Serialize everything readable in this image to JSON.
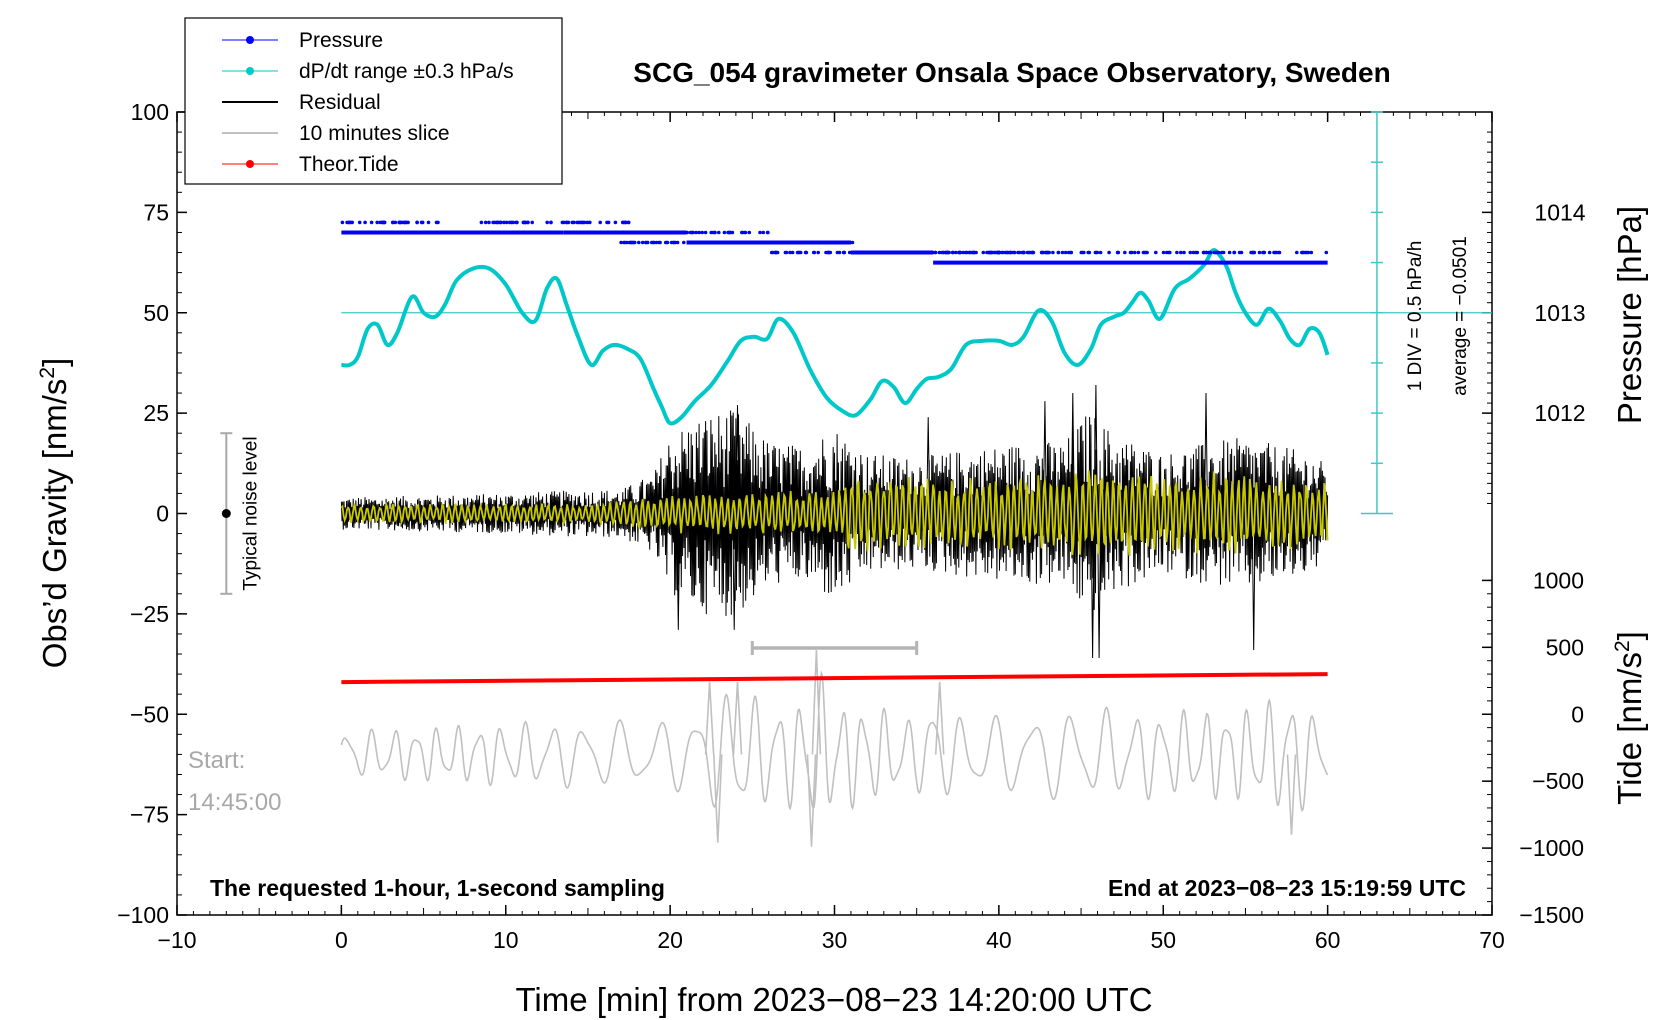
{
  "chart_data": {
    "type": "line",
    "title": "SCG_054 gravimeter Onsala Space Observatory, Sweden",
    "xlabel": "Time [min] from 2023−08−23 14:20:00 UTC",
    "ylabel_left": "Obs’d Gravity [nm/s²]",
    "ylabel_left_main": "Obs’d Gravity [nm/s",
    "ylabel_left_sup": "2",
    "ylabel_left_end": "]",
    "ylabel_right_pressure": "Pressure [hPa]",
    "ylabel_right_tide": "Tide [nm/s²]",
    "ylabel_right_tide_main": "Tide [nm/s",
    "ylabel_right_tide_sup": "2",
    "ylabel_right_tide_end": "]",
    "xlim": [
      -10,
      70
    ],
    "ylim": [
      -100,
      100
    ],
    "x_ticks": [
      -10,
      0,
      10,
      20,
      30,
      40,
      50,
      60,
      70
    ],
    "x_tick_labels": [
      "−10",
      "0",
      "10",
      "20",
      "30",
      "40",
      "50",
      "60",
      "70"
    ],
    "y_ticks": [
      -100,
      -75,
      -50,
      -25,
      0,
      25,
      50,
      75,
      100
    ],
    "y_tick_labels": [
      "−100",
      "−75",
      "−50",
      "−25",
      "0",
      "25",
      "50",
      "75",
      "100"
    ],
    "pressure_ticks": [
      1012,
      1013,
      1014
    ],
    "pressure_tick_labels": [
      "1012",
      "1013",
      "1014"
    ],
    "pressure_axis": {
      "value_at_gravity_0": 1011,
      "hpa_per_gravity_unit": 0.04
    },
    "tide_ticks": [
      -1500,
      -1000,
      -500,
      0,
      500,
      1000
    ],
    "tide_tick_labels": [
      "−1500",
      "−1000",
      "−500",
      "0",
      "500",
      "1000"
    ],
    "tide_axis": {
      "value_at_gravity_neg100": -1500,
      "nms2_per_gravity_unit": 30
    },
    "legend": [
      {
        "label": "Pressure",
        "color": "#0000ff",
        "style": "line-dot"
      },
      {
        "label": "dP/dt range ±0.3 hPa/s",
        "color": "#00c8c8",
        "style": "line-dot"
      },
      {
        "label": "Residual",
        "color": "#000000",
        "style": "line"
      },
      {
        "label": "10 minutes slice",
        "color": "#c0c0c0",
        "style": "line"
      },
      {
        "label": "Theor.Tide",
        "color": "#ff0000",
        "style": "line-dot"
      }
    ],
    "annotations": {
      "noise_label": "Typical noise level",
      "noise_range": [
        -20,
        20
      ],
      "noise_x": -7,
      "div_label": "1 DIV = 0.5 hPa/h",
      "average_label": "average = −0.0501",
      "scale_bar_x": 63,
      "scale_bar_range": [
        0,
        100
      ],
      "scale_bar_ref": 50,
      "bottom_left_note": "The requested 1-hour, 1-second sampling",
      "bottom_right_note": "End at 2023−08−23 15:19:59 UTC",
      "start_label": "Start:",
      "start_time": "14:45:00",
      "slice_bar_range": [
        25,
        35
      ],
      "slice_bar_y": -33.5
    },
    "series": [
      {
        "name": "Pressure",
        "color": "#0000ff",
        "main_line": [
          {
            "x": [
              0,
              13.5
            ],
            "y": 70
          },
          {
            "x": [
              13.5,
              21
            ],
            "y": 70
          },
          {
            "x": [
              21,
              31
            ],
            "y": 67.5
          },
          {
            "x": [
              31,
              36
            ],
            "y": 65
          },
          {
            "x": [
              36,
              60
            ],
            "y": 62.5
          }
        ],
        "scatter_bands": [
          {
            "x": [
              8.5,
              17.5
            ],
            "y": 72.5
          },
          {
            "x": [
              13.5,
              26
            ],
            "y": 70
          },
          {
            "x": [
              17,
              31.5
            ],
            "y": 67.5
          },
          {
            "x": [
              26,
              43.5
            ],
            "y": 65
          },
          {
            "x": [
              35,
              60
            ],
            "y": 65
          },
          {
            "x": [
              0,
              6
            ],
            "y": 72.5
          }
        ]
      },
      {
        "name": "dP/dt",
        "color": "#00c8c8",
        "x": [
          0,
          0.5,
          1,
          1.6,
          2.2,
          2.8,
          3.4,
          4.3,
          5.0,
          5.7,
          6.3,
          7.0,
          8.0,
          9.0,
          10.0,
          11.0,
          11.8,
          12.5,
          13.1,
          13.7,
          14.4,
          15.2,
          15.9,
          16.6,
          17.4,
          18.2,
          19.0,
          19.5,
          20.0,
          20.7,
          21.5,
          22.5,
          23.5,
          24.3,
          25.1,
          25.9,
          26.6,
          27.5,
          28.5,
          29.5,
          30.5,
          31.3,
          32.2,
          32.9,
          33.6,
          34.3,
          35.0,
          35.6,
          36.3,
          37.1,
          38.0,
          39.0,
          40.0,
          40.8,
          41.5,
          42.4,
          43.2,
          44.0,
          44.8,
          45.6,
          46.2,
          47.0,
          47.6,
          48.1,
          48.6,
          49.1,
          49.8,
          50.7,
          51.6,
          52.5,
          53.0,
          53.4,
          53.9,
          54.4,
          55.0,
          55.7,
          56.4,
          57.1,
          57.7,
          58.3,
          58.9,
          59.5,
          60.0
        ],
        "y": [
          37,
          37,
          39,
          46,
          47,
          42,
          45,
          54,
          50,
          49,
          52,
          58,
          61,
          61,
          57,
          50,
          48,
          56,
          58.5,
          52,
          44,
          37,
          40.5,
          42,
          41,
          38.5,
          31,
          26.5,
          22.5,
          24,
          28,
          32,
          38,
          43,
          44,
          43.5,
          48.5,
          45,
          36,
          29,
          25.5,
          24.5,
          28.5,
          33,
          31.5,
          27.5,
          31,
          33.5,
          34,
          36,
          42,
          43,
          43,
          42,
          44,
          50.5,
          48,
          40,
          37,
          41,
          47,
          49,
          50,
          52.5,
          55,
          53,
          48.5,
          56,
          58.5,
          62,
          65.5,
          64.5,
          61,
          55,
          50,
          47,
          51,
          48,
          43.5,
          42,
          46,
          45,
          39.5
        ]
      },
      {
        "name": "Residual",
        "color": "#000000",
        "envelope": {
          "x": [
            0,
            10,
            15,
            17,
            19,
            20,
            22,
            24,
            26,
            28,
            30,
            32,
            35,
            38,
            42,
            44,
            45.5,
            47,
            50,
            53,
            55,
            57,
            59,
            60
          ],
          "amplitude": [
            4,
            5,
            6,
            6,
            10,
            20,
            25,
            26,
            18,
            17,
            22,
            15,
            14,
            16,
            18,
            18,
            26,
            20,
            15,
            18,
            19,
            17,
            15,
            12
          ]
        },
        "spikes": [
          {
            "x": 20.5,
            "y": -29
          },
          {
            "x": 23.9,
            "y": -29
          },
          {
            "x": 45.7,
            "y": -36
          },
          {
            "x": 46.1,
            "y": -36
          },
          {
            "x": 55.5,
            "y": -34
          },
          {
            "x": 45.9,
            "y": 32
          },
          {
            "x": 52.6,
            "y": 30
          },
          {
            "x": 24.1,
            "y": 27
          },
          {
            "x": 35.7,
            "y": 24
          },
          {
            "x": 42.8,
            "y": 28
          },
          {
            "x": 44.5,
            "y": 30
          }
        ]
      },
      {
        "name": "Smoothed residual",
        "color": "#c8c800",
        "envelope": {
          "x": [
            0,
            15,
            20,
            30,
            31,
            40,
            44,
            45.5,
            46,
            50,
            55,
            60
          ],
          "amplitude": [
            2.5,
            2.5,
            5,
            6,
            10,
            9,
            10,
            14,
            12,
            10,
            11,
            8
          ]
        }
      },
      {
        "name": "10 minutes slice",
        "color": "#c0c0c0",
        "baseline": -60,
        "envelope": {
          "x": [
            0,
            10,
            20,
            22,
            24,
            26,
            28,
            29,
            30,
            32,
            35,
            36,
            37,
            40,
            45,
            50,
            55,
            58,
            60
          ],
          "amplitude": [
            6,
            8,
            9,
            12,
            18,
            13,
            14,
            22,
            14,
            13,
            9,
            16,
            10,
            10,
            12,
            11,
            12,
            16,
            8
          ]
        },
        "peaks": [
          {
            "x": 22.4,
            "y": -42
          },
          {
            "x": 22.9,
            "y": -82
          },
          {
            "x": 24.1,
            "y": -42
          },
          {
            "x": 28.9,
            "y": -34
          },
          {
            "x": 28.6,
            "y": -83
          },
          {
            "x": 36.4,
            "y": -42
          },
          {
            "x": 57.8,
            "y": -80
          }
        ]
      },
      {
        "name": "Theor.Tide",
        "color": "#ff0000",
        "x": [
          0,
          60
        ],
        "y": [
          -42,
          -40
        ]
      }
    ]
  }
}
